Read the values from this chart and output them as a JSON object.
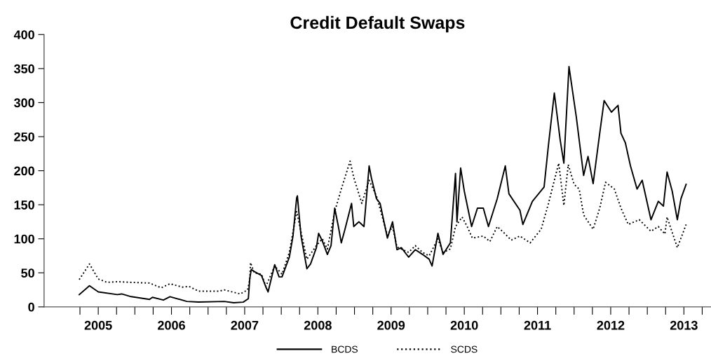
{
  "chart_data": {
    "type": "line",
    "title": "Credit Default Swaps",
    "x": [
      2004.74,
      2004.88,
      2005.0,
      2005.26,
      2005.32,
      2005.45,
      2005.7,
      2005.74,
      2005.89,
      2005.98,
      2006.21,
      2006.37,
      2006.72,
      2006.85,
      2006.98,
      2007.05,
      2007.07,
      2007.09,
      2007.13,
      2007.23,
      2007.29,
      2007.32,
      2007.41,
      2007.47,
      2007.51,
      2007.61,
      2007.66,
      2007.71,
      2007.72,
      2007.77,
      2007.85,
      2007.9,
      2007.98,
      2008.01,
      2008.06,
      2008.13,
      2008.18,
      2008.23,
      2008.28,
      2008.32,
      2008.37,
      2008.46,
      2008.49,
      2008.56,
      2008.63,
      2008.7,
      2008.73,
      2008.8,
      2008.85,
      2008.95,
      2009.02,
      2009.08,
      2009.14,
      2009.24,
      2009.33,
      2009.43,
      2009.52,
      2009.56,
      2009.64,
      2009.71,
      2009.81,
      2009.88,
      2009.9,
      2009.95,
      2010.0,
      2010.1,
      2010.18,
      2010.26,
      2010.33,
      2010.45,
      2010.56,
      2010.61,
      2010.76,
      2010.8,
      2010.93,
      2011.09,
      2011.15,
      2011.23,
      2011.31,
      2011.36,
      2011.43,
      2011.53,
      2011.63,
      2011.69,
      2011.76,
      2011.85,
      2011.91,
      2012.01,
      2012.1,
      2012.14,
      2012.2,
      2012.27,
      2012.36,
      2012.43,
      2012.55,
      2012.65,
      2012.72,
      2012.77,
      2012.84,
      2012.91,
      2012.96,
      2013.03
    ],
    "series": [
      {
        "name": "BCDS",
        "color": "#000000",
        "line_style": "solid",
        "values": [
          18,
          31,
          22,
          18,
          19,
          15,
          11,
          14,
          10,
          15,
          8,
          7,
          8,
          6,
          7,
          12,
          42,
          55,
          52,
          46,
          29,
          22,
          62,
          44,
          44,
          73,
          104,
          160,
          163,
          104,
          56,
          63,
          87,
          108,
          97,
          77,
          90,
          145,
          118,
          94,
          114,
          152,
          118,
          125,
          118,
          207,
          190,
          159,
          152,
          101,
          125,
          84,
          87,
          73,
          84,
          77,
          70,
          60,
          108,
          77,
          94,
          196,
          125,
          204,
          170,
          118,
          145,
          145,
          118,
          159,
          207,
          166,
          142,
          121,
          155,
          176,
          238,
          314,
          245,
          211,
          353,
          279,
          193,
          221,
          181,
          255,
          303,
          286,
          296,
          255,
          241,
          207,
          173,
          186,
          128,
          155,
          148,
          198,
          170,
          128,
          159,
          180
        ]
      },
      {
        "name": "SCDS",
        "color": "#000000",
        "line_style": "dotted",
        "x": [
          2004.74,
          2004.88,
          2005.0,
          2005.12,
          2005.26,
          2005.45,
          2005.7,
          2005.86,
          2005.98,
          2006.15,
          2006.24,
          2006.37,
          2006.65,
          2006.72,
          2006.94,
          2007.04,
          2007.07,
          2007.08,
          2007.13,
          2007.23,
          2007.29,
          2007.41,
          2007.51,
          2007.61,
          2007.71,
          2007.77,
          2007.85,
          2007.98,
          2008.06,
          2008.13,
          2008.23,
          2008.32,
          2008.44,
          2008.49,
          2008.6,
          2008.7,
          2008.8,
          2008.95,
          2009.02,
          2009.08,
          2009.24,
          2009.33,
          2009.43,
          2009.52,
          2009.64,
          2009.71,
          2009.81,
          2009.88,
          2009.97,
          2010.04,
          2010.11,
          2010.26,
          2010.35,
          2010.45,
          2010.55,
          2010.64,
          2010.76,
          2010.9,
          2011.05,
          2011.15,
          2011.24,
          2011.29,
          2011.36,
          2011.42,
          2011.5,
          2011.57,
          2011.63,
          2011.76,
          2011.85,
          2011.93,
          2012.05,
          2012.14,
          2012.24,
          2012.39,
          2012.55,
          2012.65,
          2012.74,
          2012.77,
          2012.91,
          2012.96,
          2013.03
        ],
        "values": [
          40,
          63,
          41,
          36,
          37,
          36,
          35,
          28,
          34,
          29,
          30,
          23,
          23,
          25,
          19,
          25,
          40,
          65,
          50,
          48,
          30,
          60,
          48,
          80,
          140,
          110,
          70,
          90,
          100,
          85,
          140,
          173,
          214,
          190,
          152,
          186,
          163,
          105,
          118,
          88,
          80,
          90,
          80,
          75,
          100,
          80,
          85,
          118,
          132,
          118,
          101,
          104,
          96,
          118,
          108,
          98,
          104,
          94,
          114,
          152,
          190,
          211,
          149,
          209,
          180,
          173,
          135,
          114,
          145,
          183,
          173,
          145,
          121,
          128,
          111,
          118,
          107,
          132,
          87,
          101,
          121
        ]
      }
    ],
    "xlim": [
      2004.26,
      2013.37
    ],
    "xticks": [
      {
        "value": 2004.75,
        "label": null
      },
      {
        "value": 2005,
        "label": "2005"
      },
      {
        "value": 2005.25,
        "label": null
      },
      {
        "value": 2005.5,
        "label": null
      },
      {
        "value": 2005.75,
        "label": null
      },
      {
        "value": 2006,
        "label": "2006"
      },
      {
        "value": 2006.25,
        "label": null
      },
      {
        "value": 2006.5,
        "label": null
      },
      {
        "value": 2006.75,
        "label": null
      },
      {
        "value": 2007,
        "label": "2007"
      },
      {
        "value": 2007.25,
        "label": null
      },
      {
        "value": 2007.5,
        "label": null
      },
      {
        "value": 2007.75,
        "label": null
      },
      {
        "value": 2008,
        "label": "2008"
      },
      {
        "value": 2008.25,
        "label": null
      },
      {
        "value": 2008.5,
        "label": null
      },
      {
        "value": 2008.75,
        "label": null
      },
      {
        "value": 2009,
        "label": "2009"
      },
      {
        "value": 2009.25,
        "label": null
      },
      {
        "value": 2009.5,
        "label": null
      },
      {
        "value": 2009.75,
        "label": null
      },
      {
        "value": 2010,
        "label": "2010"
      },
      {
        "value": 2010.25,
        "label": null
      },
      {
        "value": 2010.5,
        "label": null
      },
      {
        "value": 2010.75,
        "label": null
      },
      {
        "value": 2011,
        "label": "2011"
      },
      {
        "value": 2011.25,
        "label": null
      },
      {
        "value": 2011.5,
        "label": null
      },
      {
        "value": 2011.75,
        "label": null
      },
      {
        "value": 2012,
        "label": "2012"
      },
      {
        "value": 2012.25,
        "label": null
      },
      {
        "value": 2012.5,
        "label": null
      },
      {
        "value": 2012.75,
        "label": null
      },
      {
        "value": 2013,
        "label": "2013"
      },
      {
        "value": 2013.25,
        "label": null
      }
    ],
    "ylim": [
      0,
      400
    ],
    "yticks": [
      0,
      50,
      100,
      150,
      200,
      250,
      300,
      350,
      400
    ],
    "grid": false,
    "legend": "bottom"
  }
}
